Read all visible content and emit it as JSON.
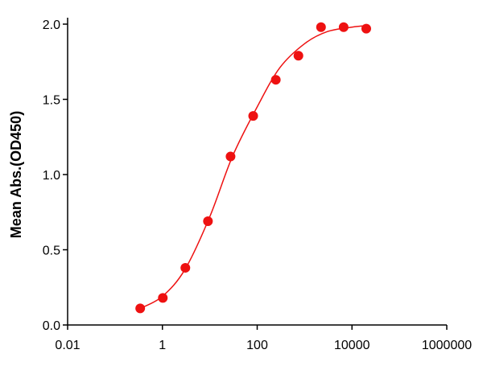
{
  "chart_data": {
    "type": "scatter",
    "y_label": "Mean Abs.(OD450)",
    "x_scale": "log",
    "xlim": [
      0.01,
      1000000
    ],
    "xticks": [
      0.01,
      1,
      100,
      10000,
      1000000
    ],
    "ylim": [
      0,
      2.0
    ],
    "yticks": [
      {
        "value": 0,
        "label": "0.0"
      },
      0.5,
      {
        "value": 1,
        "label": "1.0"
      },
      1.5,
      {
        "value": 2,
        "label": "2.0"
      }
    ],
    "series": [
      {
        "color": "#ee1111",
        "x": [
          0.34,
          1.02,
          3.05,
          9.14,
          27.4,
          82.3,
          247,
          741,
          2222,
          6667,
          20000
        ],
        "values": [
          0.11,
          0.18,
          0.38,
          0.69,
          1.12,
          1.39,
          1.63,
          1.79,
          1.98,
          1.98,
          1.97
        ]
      }
    ],
    "fit": {
      "color": "#ee1111",
      "x": [
        0.34,
        1,
        3,
        10,
        30,
        100,
        300,
        1000,
        3000,
        10000,
        20000
      ],
      "values": [
        0.11,
        0.19,
        0.37,
        0.72,
        1.12,
        1.45,
        1.71,
        1.87,
        1.95,
        1.98,
        1.99
      ]
    }
  }
}
